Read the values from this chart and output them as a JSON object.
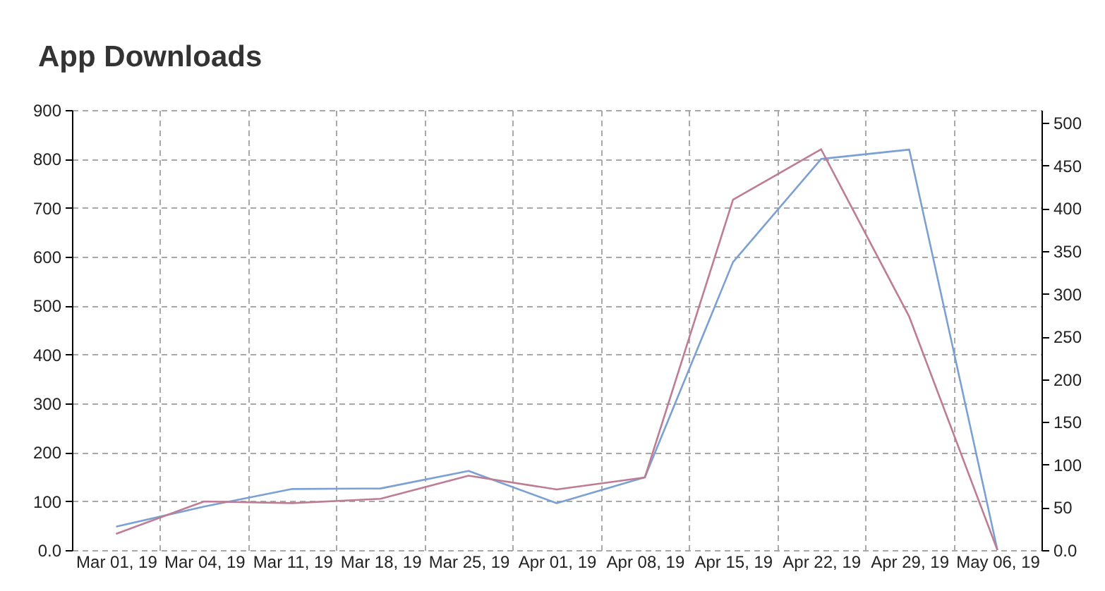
{
  "chart_data": {
    "type": "line",
    "title": "App Downloads",
    "categories": [
      "Mar 01, 19",
      "Mar 04, 19",
      "Mar 11, 19",
      "Mar 18, 19",
      "Mar 25, 19",
      "Apr 01, 19",
      "Apr 08, 19",
      "Apr 15, 19",
      "Apr 22, 19",
      "Apr 29, 19",
      "May 06, 19"
    ],
    "series": [
      {
        "color": "#7aa0d4",
        "values": [
          48,
          89,
          125,
          126,
          162,
          96,
          149,
          589,
          800,
          819,
          0
        ]
      },
      {
        "color": "#be7c95",
        "axis": "y2",
        "values": [
          19,
          57,
          55,
          60,
          87,
          71,
          85,
          410,
          469,
          273,
          0
        ]
      }
    ],
    "ylim": [
      0,
      900
    ],
    "yticks": [
      {
        "value": 0,
        "label": "0.0"
      },
      100,
      200,
      300,
      400,
      500,
      600,
      700,
      800,
      900
    ],
    "y2lim": [
      0,
      515
    ],
    "y2ticks": [
      {
        "value": 0,
        "label": "0.0"
      },
      50,
      100,
      150,
      200,
      250,
      300,
      350,
      400,
      450,
      500
    ],
    "grid": true
  }
}
